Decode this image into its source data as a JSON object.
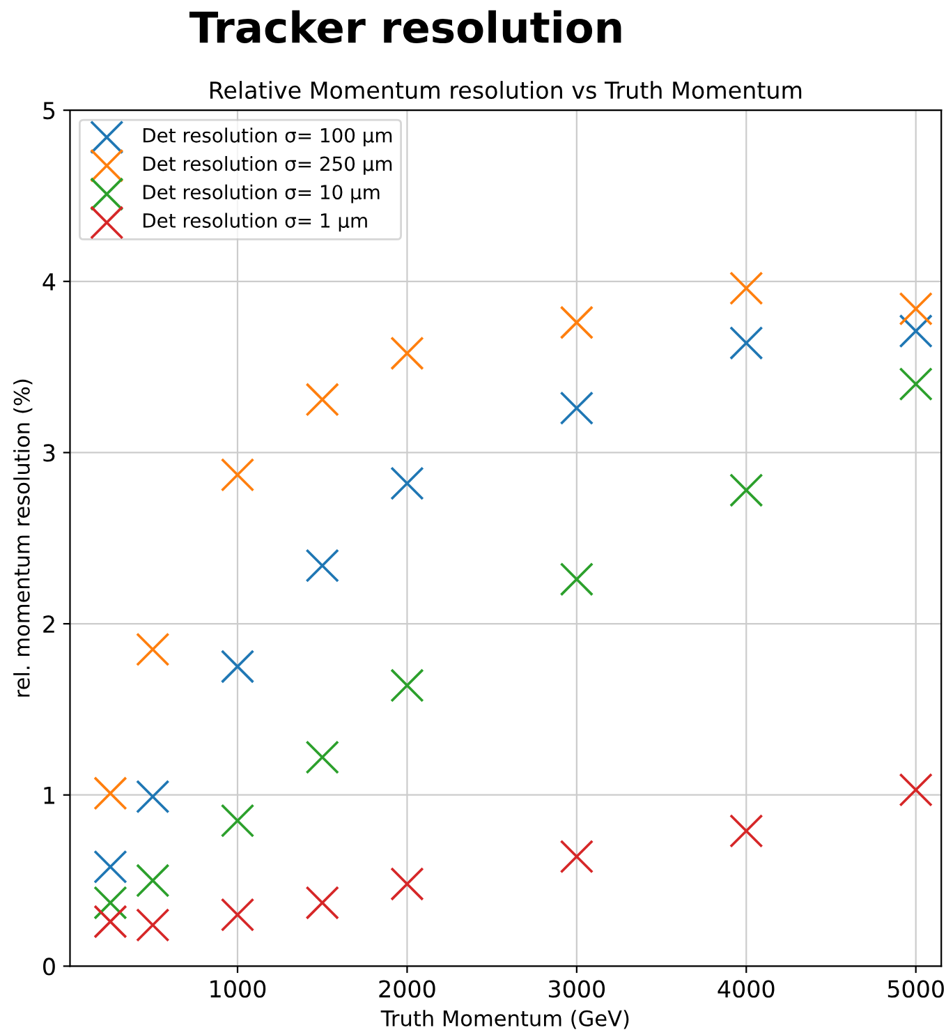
{
  "chart_data": {
    "type": "scatter",
    "title": "Tracker resolution",
    "subtitle": "Relative Momentum resolution vs Truth Momentum",
    "xlabel": "Truth Momentum (GeV)",
    "ylabel": "rel. momentum resolution (%)",
    "x": [
      250,
      500,
      1000,
      1500,
      2000,
      3000,
      4000,
      5000
    ],
    "series": [
      {
        "name": "Det resolution σ= 100 μm",
        "color": "#1f77b4",
        "values": [
          0.58,
          0.99,
          1.75,
          2.34,
          2.82,
          3.26,
          3.64,
          3.71
        ]
      },
      {
        "name": "Det resolution σ= 250 μm",
        "color": "#ff7f0e",
        "values": [
          1.01,
          1.85,
          2.87,
          3.31,
          3.58,
          3.76,
          3.96,
          3.84
        ]
      },
      {
        "name": "Det resolution σ= 10 μm",
        "color": "#2ca02c",
        "values": [
          0.37,
          0.5,
          0.85,
          1.22,
          1.64,
          2.26,
          2.78,
          3.4
        ]
      },
      {
        "name": "Det resolution σ= 1 μm",
        "color": "#d62728",
        "values": [
          0.26,
          0.24,
          0.3,
          0.37,
          0.48,
          0.64,
          0.79,
          1.03
        ]
      }
    ],
    "xlim": [
      12,
      5150
    ],
    "xticks": [
      1000,
      2000,
      3000,
      4000,
      5000
    ],
    "ylim": [
      0,
      5
    ],
    "yticks": [
      0,
      1,
      2,
      3,
      4,
      5
    ],
    "grid": true,
    "legend": "top left",
    "marker": "cross"
  }
}
